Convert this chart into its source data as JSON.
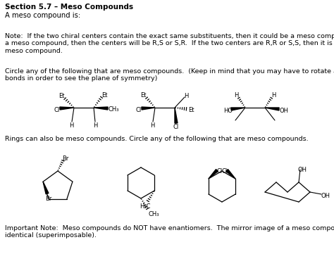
{
  "title": "Section 5.7 – Meso Compounds",
  "line1": "A meso compound is:",
  "note_text": "Note:  If the two chiral centers contain the exact same substituents, then it could be a meso compound.  If it is\na meso compound, then the centers will be R,S or S,R.  If the two centers are R,R or S,S, then it is NOT a\nmeso compound.",
  "circle_text": "Circle any of the following that are meso compounds.  (Keep in mind that you may have to rotate around single\nbonds in order to see the plane of symmetry)",
  "rings_text": "Rings can also be meso compounds. Circle any of the following that are meso compounds.",
  "important_text": "Important Note:  Meso compounds do NOT have enantiomers.  The mirror image of a meso compound is\nidentical (superimposable).",
  "bg_color": "#ffffff",
  "text_color": "#000000",
  "fig_w": 4.74,
  "fig_h": 3.61,
  "dpi": 100
}
